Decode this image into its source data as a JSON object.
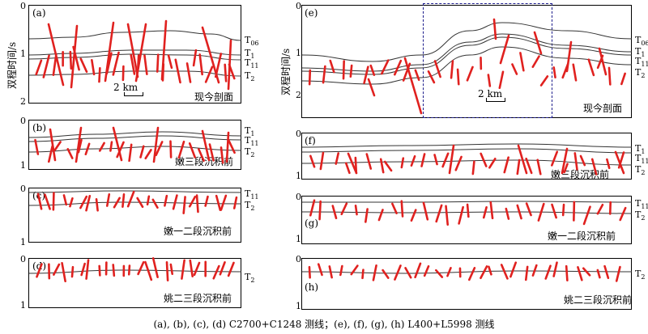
{
  "y_axis_label": "双程时间/s",
  "panels": [
    {
      "id": "a",
      "tag": "(a)",
      "stage": "现今剖面",
      "ticks": [
        "0",
        "1",
        "2"
      ],
      "horizons": [
        "T06",
        "T1",
        "T11",
        "T2"
      ],
      "scale": "2 km"
    },
    {
      "id": "b",
      "tag": "(b)",
      "stage": "嫩三段沉积前",
      "ticks": [
        "0",
        "1"
      ],
      "horizons": [
        "T1",
        "T11",
        "T2"
      ]
    },
    {
      "id": "c",
      "tag": "(c)",
      "stage": "嫩一二段沉积前",
      "ticks": [
        "0",
        "1"
      ],
      "horizons": [
        "T11",
        "T2"
      ]
    },
    {
      "id": "d",
      "tag": "(d)",
      "stage": "姚二三段沉积前",
      "ticks": [
        "0",
        "1"
      ],
      "horizons": [
        "T2"
      ]
    },
    {
      "id": "e",
      "tag": "(e)",
      "stage": "现今剖面",
      "ticks": [
        "0",
        "1",
        "2"
      ],
      "horizons": [
        "T06",
        "T1",
        "T11",
        "T2"
      ],
      "scale": "2 km"
    },
    {
      "id": "f",
      "tag": "(f)",
      "stage": "嫩三段沉积前",
      "ticks": [
        "0",
        "1"
      ],
      "horizons": [
        "T1",
        "T11",
        "T2"
      ]
    },
    {
      "id": "g",
      "tag": "(g)",
      "stage": "嫩一二段沉积前",
      "ticks": [
        "0",
        "1"
      ],
      "horizons": [
        "T11",
        "T2"
      ]
    },
    {
      "id": "h",
      "tag": "(h)",
      "stage": "姚二三段沉积前",
      "ticks": [
        "0",
        "1"
      ],
      "horizons": [
        "T2"
      ]
    }
  ],
  "caption": "(a), (b), (c), (d) C2700+C1248 测线；(e), (f), (g), (h) L400+L5998 测线",
  "colors": {
    "fault": "#e0211f",
    "horizon": "#333333",
    "highlight_box": "#1a1a8a"
  }
}
